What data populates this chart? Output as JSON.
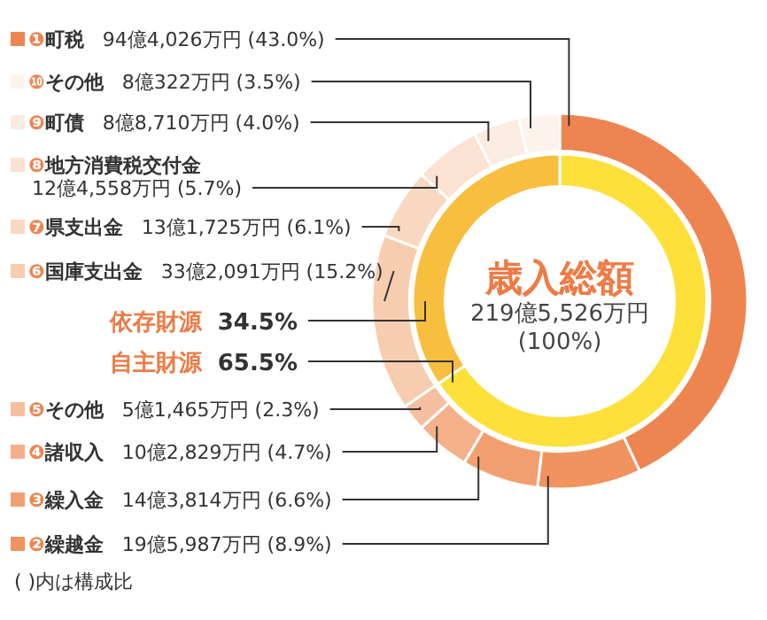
{
  "chart_data": [
    {
      "type": "donut",
      "categories": [
        "❶町税",
        "❷繰越金",
        "❸繰入金",
        "❹諸収入",
        "❺その他",
        "❻国庫支出金",
        "❼県支出金",
        "❽地方消費税交付金",
        "❾町債",
        "❿その他"
      ],
      "values": [
        43.0,
        8.9,
        6.6,
        4.7,
        2.3,
        15.2,
        6.1,
        5.7,
        4.0,
        3.5
      ],
      "colors": [
        "#ee8550",
        "#f0935e",
        "#f29f70",
        "#f4b088",
        "#f6c0a0",
        "#f7cdb0",
        "#f9d8c2",
        "#fbe2d3",
        "#fcebe1",
        "#fdf3ec"
      ],
      "value_labels": [
        "94億4,026万円 (43.0%)",
        "19億5,987万円 (8.9%)",
        "14億3,814万円 (6.6%)",
        "10億2,829万円 (4.7%)",
        "5億1,465万円 (2.3%)",
        "33億2,091万円 (15.2%)",
        "13億1,725万円 (6.1%)",
        "12億4,558万円 (5.7%)",
        "8億8,710万円 (4.0%)",
        "8億322万円 (3.5%)"
      ],
      "annotations": [
        "( )内は構成比"
      ],
      "legend": "left"
    },
    {
      "type": "donut",
      "title": "歳入総額",
      "categories": [
        "自主財源",
        "依存財源"
      ],
      "values": [
        65.5,
        34.5
      ],
      "colors": [
        "#fde03a",
        "#f8be3d"
      ],
      "value_labels": [
        "65.5%",
        "34.5%"
      ],
      "annotations": [
        "219億5,526万円",
        "(100%)"
      ]
    }
  ]
}
